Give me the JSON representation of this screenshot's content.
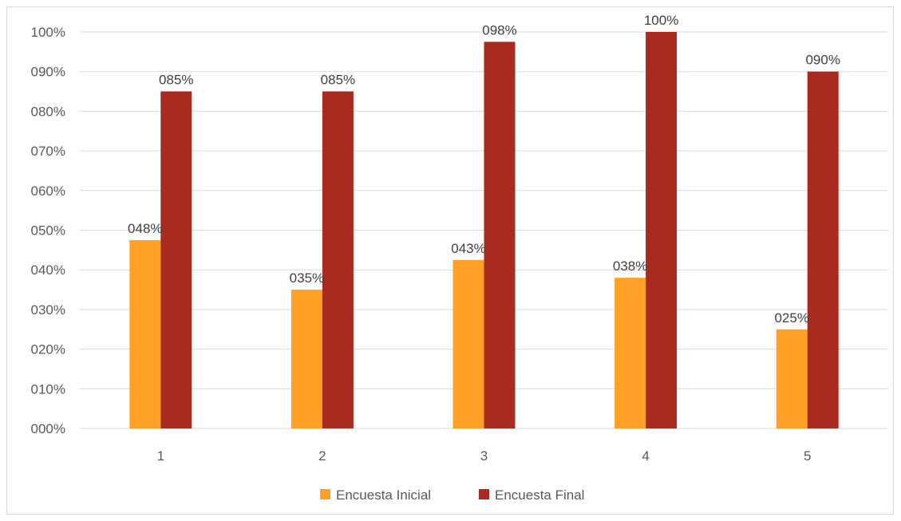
{
  "chart_data": {
    "type": "bar",
    "categories": [
      "1",
      "2",
      "3",
      "4",
      "5"
    ],
    "series": [
      {
        "name": "Encuesta Inicial",
        "values": [
          0.475,
          0.35,
          0.425,
          0.38,
          0.25
        ],
        "labels": [
          "048%",
          "035%",
          "043%",
          "038%",
          "025%"
        ],
        "color": "#FFA127"
      },
      {
        "name": "Encuesta Final",
        "values": [
          0.85,
          0.85,
          0.975,
          1.0,
          0.9
        ],
        "labels": [
          "085%",
          "085%",
          "098%",
          "100%",
          "090%"
        ],
        "color": "#A92A1E"
      }
    ],
    "ylim": [
      0,
      1
    ],
    "y_ticks": [
      {
        "value": 0,
        "label": "000%"
      },
      {
        "value": 0.1,
        "label": "010%"
      },
      {
        "value": 0.2,
        "label": "020%"
      },
      {
        "value": 0.3,
        "label": "030%"
      },
      {
        "value": 0.4,
        "label": "040%"
      },
      {
        "value": 0.5,
        "label": "050%"
      },
      {
        "value": 0.6,
        "label": "060%"
      },
      {
        "value": 0.7,
        "label": "070%"
      },
      {
        "value": 0.8,
        "label": "080%"
      },
      {
        "value": 0.9,
        "label": "090%"
      },
      {
        "value": 1.0,
        "label": "100%"
      }
    ],
    "grid": true,
    "gridline_color": "#D9D9D9",
    "legend_position": "bottom",
    "title": "",
    "xlabel": "",
    "ylabel": ""
  }
}
